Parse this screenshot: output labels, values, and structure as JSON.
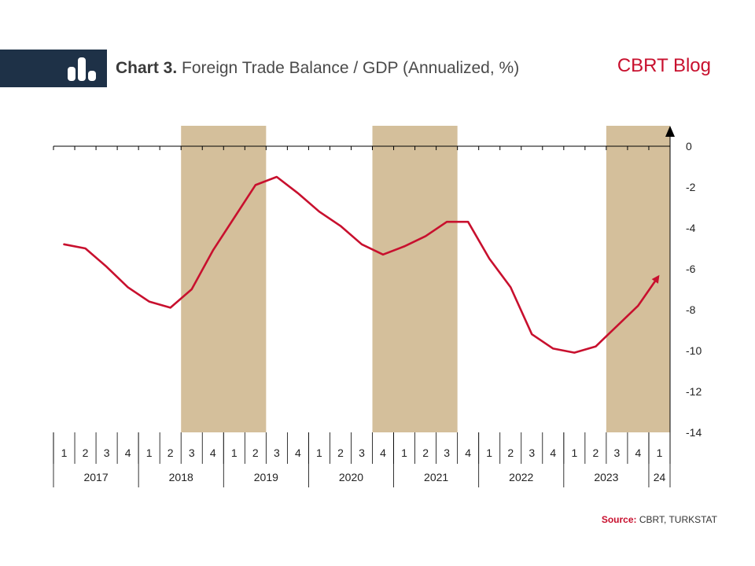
{
  "header": {
    "chart_number": "Chart 3.",
    "title": "Foreign Trade Balance / GDP (Annualized, %)",
    "brand": "CBRT Blog",
    "logo_icon": "bar-chart-icon"
  },
  "source": {
    "label": "Source:",
    "text": "CBRT, TURKSTAT"
  },
  "colors": {
    "line": "#c8102e",
    "shade": "#d4bf9b",
    "header_bg": "#1e3147"
  },
  "chart_data": {
    "type": "line",
    "title": "Foreign Trade Balance / GDP (Annualized, %)",
    "ylim": [
      -14,
      0
    ],
    "yticks": [
      0,
      -2,
      -4,
      -6,
      -8,
      -10,
      -12,
      -14
    ],
    "quarters": [
      1,
      2,
      3,
      4,
      1,
      2,
      3,
      4,
      1,
      2,
      3,
      4,
      1,
      2,
      3,
      4,
      1,
      2,
      3,
      4,
      1,
      2,
      3,
      4,
      1,
      2,
      3,
      4,
      1
    ],
    "years": [
      {
        "label": "2017",
        "quarters": 4
      },
      {
        "label": "2018",
        "quarters": 4
      },
      {
        "label": "2019",
        "quarters": 4
      },
      {
        "label": "2020",
        "quarters": 4
      },
      {
        "label": "2021",
        "quarters": 4
      },
      {
        "label": "2022",
        "quarters": 4
      },
      {
        "label": "2023",
        "quarters": 4
      },
      {
        "label": "24",
        "quarters": 1
      }
    ],
    "shaded_periods": [
      {
        "from": "2018Q3",
        "to": "2019Q2"
      },
      {
        "from": "2020Q4",
        "to": "2021Q3"
      },
      {
        "from": "2023Q3",
        "to": "2024Q1"
      }
    ],
    "series": [
      {
        "values": [
          -4.8,
          -5.0,
          -5.9,
          -6.9,
          -7.6,
          -7.9,
          -7.0,
          -5.1,
          -3.5,
          -1.9,
          -1.5,
          -2.3,
          -3.2,
          -3.9,
          -4.8,
          -5.3,
          -4.9,
          -4.4,
          -3.7,
          -3.7,
          -5.5,
          -6.9,
          -9.2,
          -9.9,
          -10.1,
          -9.8,
          -8.8,
          -7.8,
          -6.3
        ]
      }
    ]
  }
}
